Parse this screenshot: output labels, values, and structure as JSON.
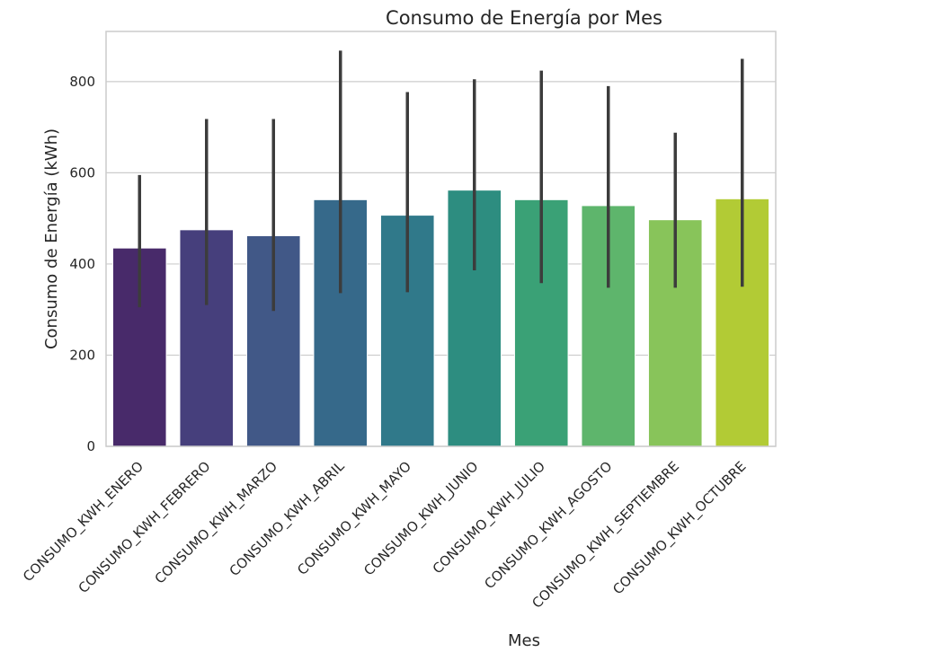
{
  "chart_data": {
    "type": "bar",
    "title": "Consumo de Energía por Mes",
    "xlabel": "Mes",
    "ylabel": "Consumo de Energía (kWh)",
    "ylim": [
      0,
      910
    ],
    "yticks": [
      0,
      200,
      400,
      600,
      800
    ],
    "grid": "horizontal",
    "categories": [
      "CONSUMO_KWH_ENERO",
      "CONSUMO_KWH_FEBRERO",
      "CONSUMO_KWH_MARZO",
      "CONSUMO_KWH_ABRIL",
      "CONSUMO_KWH_MAYO",
      "CONSUMO_KWH_JUNIO",
      "CONSUMO_KWH_JULIO",
      "CONSUMO_KWH_AGOSTO",
      "CONSUMO_KWH_SEPTIEMBRE",
      "CONSUMO_KWH_OCTUBRE"
    ],
    "values": [
      435,
      475,
      462,
      541,
      507,
      562,
      541,
      528,
      497,
      543
    ],
    "error_low": [
      305,
      310,
      297,
      336,
      338,
      386,
      358,
      348,
      348,
      350
    ],
    "error_high": [
      595,
      718,
      718,
      868,
      777,
      805,
      824,
      790,
      688,
      850
    ],
    "colors": [
      "#482a6a",
      "#463f7c",
      "#415887",
      "#36698a",
      "#30798a",
      "#2d8d80",
      "#3aa176",
      "#5eb56c",
      "#88c45a",
      "#b2cb35"
    ]
  }
}
